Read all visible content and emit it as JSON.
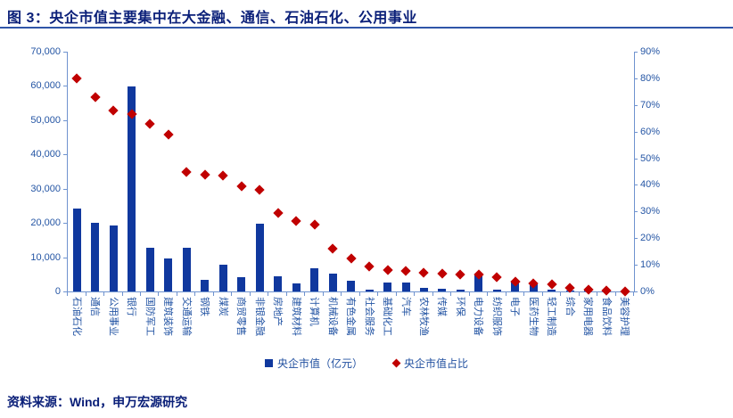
{
  "title": "图 3：央企市值主要集中在大金融、通信、石油石化、公用事业",
  "source": "资料来源：Wind，申万宏源研究",
  "legend": {
    "bars": "央企市值（亿元）",
    "dots": "央企市值占比"
  },
  "colors": {
    "title": "#0b2079",
    "rule": "#2f55a8",
    "bar": "#10389e",
    "dot": "#c00000",
    "axis_line": "#6f93cf",
    "axis_text": "#2455a4"
  },
  "chart_data": {
    "type": "bar",
    "subtype": "bar-with-scatter-diamond-overlay",
    "categories": [
      "石油石化",
      "通信",
      "公用事业",
      "银行",
      "国防军工",
      "建筑装饰",
      "交通运输",
      "钢铁",
      "煤炭",
      "商贸零售",
      "非银金融",
      "房地产",
      "建筑材料",
      "计算机",
      "机械设备",
      "有色金属",
      "社会服务",
      "基础化工",
      "汽车",
      "农林牧渔",
      "传媒",
      "环保",
      "电力设备",
      "纺织服饰",
      "电子",
      "医药生物",
      "轻工制造",
      "综合",
      "家用电器",
      "食品饮料",
      "美容护理"
    ],
    "series": [
      {
        "name": "央企市值（亿元）",
        "type": "bar",
        "axis": "left",
        "values": [
          24200,
          20000,
          19200,
          59800,
          12800,
          9600,
          12800,
          3500,
          7900,
          4100,
          19800,
          4400,
          2400,
          6900,
          5200,
          3100,
          600,
          2500,
          2500,
          1100,
          700,
          450,
          5200,
          500,
          3200,
          2200,
          600,
          250,
          150,
          150,
          80
        ]
      },
      {
        "name": "央企市值占比",
        "type": "scatter",
        "marker": "diamond",
        "axis": "right",
        "values": [
          80,
          73,
          68,
          66.5,
          63,
          59,
          45,
          44,
          43.5,
          39.5,
          38,
          29.5,
          26.5,
          25,
          16,
          12.5,
          9.5,
          8,
          7.8,
          7,
          6.7,
          6.5,
          6.5,
          5.4,
          3.7,
          3,
          2.8,
          1.5,
          0.6,
          0.5,
          0.1
        ]
      }
    ],
    "left_axis": {
      "min": 0,
      "max": 70000,
      "step": 10000,
      "ticks": [
        "70,000",
        "60,000",
        "50,000",
        "40,000",
        "30,000",
        "20,000",
        "10,000",
        "0"
      ]
    },
    "right_axis": {
      "min": 0,
      "max": 90,
      "step": 10,
      "ticks": [
        "90%",
        "80%",
        "70%",
        "60%",
        "50%",
        "40%",
        "30%",
        "20%",
        "10%",
        "0%"
      ]
    },
    "grid": false,
    "legend_position": "bottom-center"
  }
}
